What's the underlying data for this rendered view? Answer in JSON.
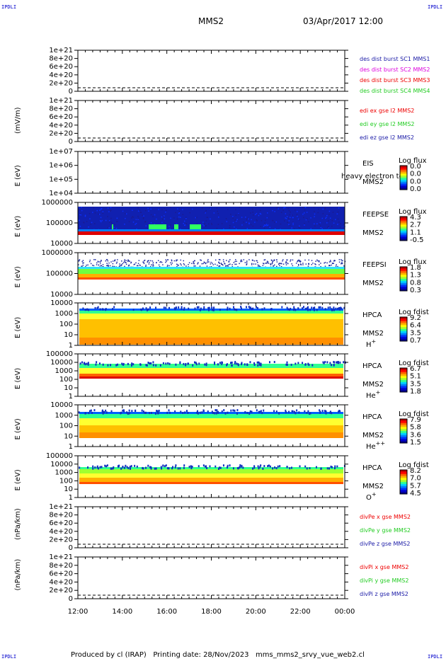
{
  "header": {
    "corner_tl": "IPDLI",
    "corner_tr": "IPDLI",
    "corner_bl": "IPDLI",
    "corner_br": "IPDLI",
    "mission": "MMS2",
    "datetime": "03/Apr/2017 12:00"
  },
  "footer": {
    "text": "Produced by cl (IRAP)   Printing date: 28/Nov/2023   mms_mms2_srvy_vue_web2.cl"
  },
  "time_axis": {
    "ticks": [
      "12:00",
      "14:00",
      "16:00",
      "18:00",
      "20:00",
      "22:00",
      "00:00"
    ]
  },
  "colors": {
    "dark_blue": "#1a1aa6",
    "blue": "#1f33ff",
    "magenta": "#dd00dd",
    "red": "#ee0000",
    "green": "#22cc22"
  },
  "chart_data": [
    {
      "type": "line",
      "id": "des-dist",
      "ylabel": "",
      "yticks": [
        "1e+21",
        "8e+20",
        "6e+20",
        "4e+20",
        "2e+20",
        "0"
      ],
      "legend": [
        "des dist burst SC1 MMS1",
        "des dist burst SC2 MMS2",
        "des dist burst SC3 MMS3",
        "des dist burst SC4 MMS4"
      ],
      "legend_colors": [
        "#1a1aa6",
        "#dd00dd",
        "#ee0000",
        "#22cc22"
      ],
      "zero_line": true
    },
    {
      "type": "line",
      "id": "edi-e",
      "ylabel": "(mV/m)",
      "yticks": [
        "1e+21",
        "8e+20",
        "6e+20",
        "4e+20",
        "2e+20",
        "0"
      ],
      "legend": [
        "edi ex gse l2 MMS2",
        "edi ey gse l2 MMS2",
        "edi ez gse l2 MMS2"
      ],
      "legend_colors": [
        "#ee0000",
        "#22cc22",
        "#1a1aa6"
      ],
      "zero_line": true
    },
    {
      "type": "heatmap",
      "id": "eis",
      "ylabel": "E (eV)",
      "yticks": [
        "1e+07",
        "1e+06",
        "1e+05",
        "1e+04"
      ],
      "instrument": "EIS",
      "overlay": "heavy electron to",
      "spacecraft": "MMS2",
      "colorbar_title": "Log flux",
      "colorbar_ticks": [
        "0.0",
        "0.0",
        "0.0",
        "0.0"
      ]
    },
    {
      "type": "heatmap",
      "id": "feepse",
      "ylabel": "E (eV)",
      "yticks": [
        "1000000",
        "100000",
        "10000"
      ],
      "instrument": "FEEPSE",
      "spacecraft": "MMS2",
      "colorbar_title": "Log flux",
      "colorbar_ticks": [
        "4.3",
        "2.7",
        "1.1",
        "-0.5"
      ]
    },
    {
      "type": "heatmap",
      "id": "feepsi",
      "ylabel": "E (eV)",
      "yticks": [
        "1000000",
        "100000",
        "10000"
      ],
      "instrument": "FEEPSI",
      "spacecraft": "MMS2",
      "colorbar_title": "Log flux",
      "colorbar_ticks": [
        "1.8",
        "1.3",
        "0.8",
        "0.3"
      ]
    },
    {
      "type": "heatmap",
      "id": "hpca-h",
      "ylabel": "E (eV)",
      "yticks": [
        "10000",
        "1000",
        "100",
        "10",
        "1"
      ],
      "instrument": "HPCA",
      "spacecraft": "MMS2",
      "species": "H",
      "species_sup": "+",
      "colorbar_title": "Log fdist",
      "colorbar_ticks": [
        "9.2",
        "6.4",
        "3.5",
        "0.7"
      ]
    },
    {
      "type": "heatmap",
      "id": "hpca-he",
      "ylabel": "E (eV)",
      "yticks": [
        "100000",
        "10000",
        "1000",
        "100",
        "10",
        "1"
      ],
      "instrument": "HPCA",
      "spacecraft": "MMS2",
      "species": "He",
      "species_sup": "+",
      "colorbar_title": "Log fdist",
      "colorbar_ticks": [
        "6.7",
        "5.1",
        "3.5",
        "1.8"
      ]
    },
    {
      "type": "heatmap",
      "id": "hpca-hepp",
      "ylabel": "E (eV)",
      "yticks": [
        "10000",
        "1000",
        "100",
        "10",
        "1"
      ],
      "instrument": "HPCA",
      "spacecraft": "MMS2",
      "species": "He",
      "species_sup": "++",
      "colorbar_title": "Log fdist",
      "colorbar_ticks": [
        "7.9",
        "5.8",
        "3.6",
        "1.5"
      ]
    },
    {
      "type": "heatmap",
      "id": "hpca-o",
      "ylabel": "E (eV)",
      "yticks": [
        "100000",
        "10000",
        "1000",
        "100",
        "10",
        "1"
      ],
      "instrument": "HPCA",
      "spacecraft": "MMS2",
      "species": "O",
      "species_sup": "+",
      "colorbar_title": "Log fdist",
      "colorbar_ticks": [
        "8.2",
        "7.0",
        "5.7",
        "4.5"
      ]
    },
    {
      "type": "line",
      "id": "divpe",
      "ylabel": "(nPa/km)",
      "yticks": [
        "1e+21",
        "8e+20",
        "6e+20",
        "4e+20",
        "2e+20",
        "0"
      ],
      "legend": [
        "divPe x gse MMS2",
        "divPe y gse MMS2",
        "divPe z gse MMS2"
      ],
      "legend_colors": [
        "#ee0000",
        "#22cc22",
        "#1a1aa6"
      ],
      "zero_line": true
    },
    {
      "type": "line",
      "id": "divpi",
      "ylabel": "(nPa/km)",
      "yticks": [
        "1e+21",
        "8e+20",
        "6e+20",
        "4e+20",
        "2e+20",
        "0"
      ],
      "legend": [
        "divPi x gse MMS2",
        "divPi y gse MMS2",
        "divPi z gse MMS2"
      ],
      "legend_colors": [
        "#ee0000",
        "#22cc22",
        "#1a1aa6"
      ],
      "zero_line": true
    }
  ]
}
